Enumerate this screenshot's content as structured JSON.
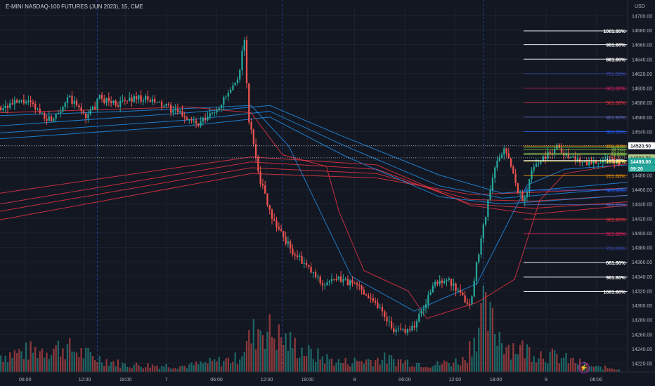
{
  "title": "E-MINI NASDAQ-100 FUTURES (JUN 2023), 15, CME",
  "icons": {
    "lightning": "lightning-icon"
  },
  "chart_data": {
    "type": "candlestick",
    "currency_label": "USD",
    "y_ticks": [
      14220,
      14240,
      14260,
      14280,
      14300,
      14320,
      14340,
      14360,
      14380,
      14400,
      14420,
      14440,
      14460,
      14480,
      14500,
      14520,
      14540,
      14560,
      14580,
      14600,
      14620,
      14640,
      14660,
      14680,
      14700
    ],
    "x_ticks": [
      "06:00",
      "12:00",
      "18:00",
      "7",
      "06:00",
      "12:00",
      "18:00",
      "8",
      "06:00",
      "12:00",
      "18:00",
      "9",
      "06:00"
    ],
    "price_labels": [
      {
        "text": "14520.50",
        "color": "#2a2e39",
        "bg": "#ffffff"
      },
      {
        "text": "14503.75",
        "color": "#2a2e39",
        "bg": "#b2c988"
      },
      {
        "text": "14498.00",
        "color": "#ffffff",
        "bg": "#26a69a"
      },
      {
        "text": "09:20",
        "color": "#ffffff",
        "bg": "#26a69a"
      }
    ],
    "fib_upper": [
      {
        "label": "1061.80%",
        "price": 14679,
        "color": "#ffffff"
      },
      {
        "label": "961.80%",
        "price": 14660,
        "color": "#ffffff"
      },
      {
        "label": "861.80%",
        "price": 14640,
        "color": "#ffffff"
      },
      {
        "label": "761.80%",
        "price": 14620,
        "color": "#3949ab"
      },
      {
        "label": "661.80%",
        "price": 14600,
        "color": "#e91e63"
      },
      {
        "label": "561.80%",
        "price": 14580,
        "color": "#f23645"
      },
      {
        "label": "461.80%",
        "price": 14560,
        "color": "#5c6bc0"
      },
      {
        "label": "361.80%",
        "price": 14540,
        "color": "#2962ff"
      },
      {
        "label": "261.80%",
        "price": 14520,
        "color": "#ff9800"
      },
      {
        "label": "161.80%",
        "price": 14500,
        "color": "#ffffff"
      }
    ],
    "fib_lower": [
      {
        "label": "161.80%",
        "price": 14499,
        "color": "#ffeb3b"
      },
      {
        "label": "261.80%",
        "price": 14479,
        "color": "#ff9800"
      },
      {
        "label": "361.80%",
        "price": 14459,
        "color": "#2962ff"
      },
      {
        "label": "461.80%",
        "price": 14439,
        "color": "#5c6bc0"
      },
      {
        "label": "561.80%",
        "price": 14419,
        "color": "#f23645"
      },
      {
        "label": "661.80%",
        "price": 14399,
        "color": "#e91e63"
      },
      {
        "label": "761.80%",
        "price": 14379,
        "color": "#3949ab"
      },
      {
        "label": "861.80%",
        "price": 14359,
        "color": "#ffffff"
      },
      {
        "label": "961.80%",
        "price": 14339,
        "color": "#ffffff"
      },
      {
        "label": "1061.80%",
        "price": 14319,
        "color": "#ffffff"
      }
    ],
    "reference_lines": [
      {
        "label": "54.80%",
        "price": 14518,
        "color": "#4caf50"
      },
      {
        "label": "38.20%",
        "price": 14515,
        "color": "#8bc34a"
      },
      {
        "label": "23.60%",
        "price": 14510,
        "color": "#8bc34a"
      },
      {
        "label": "0.00%",
        "price": 14508,
        "color": "#8bc34a"
      }
    ],
    "dotted_levels": [
      14520.5,
      14503.75
    ],
    "session_dividers_x": [
      0.155,
      0.45,
      0.77
    ],
    "candle_path": [
      [
        0,
        14574
      ],
      [
        0.04,
        14582
      ],
      [
        0.08,
        14556
      ],
      [
        0.11,
        14586
      ],
      [
        0.14,
        14560
      ],
      [
        0.16,
        14586
      ],
      [
        0.19,
        14578
      ],
      [
        0.22,
        14588
      ],
      [
        0.26,
        14577
      ],
      [
        0.3,
        14560
      ],
      [
        0.32,
        14548
      ],
      [
        0.35,
        14572
      ],
      [
        0.37,
        14594
      ],
      [
        0.385,
        14610
      ],
      [
        0.39,
        14656
      ],
      [
        0.395,
        14664
      ],
      [
        0.4,
        14560
      ],
      [
        0.41,
        14520
      ],
      [
        0.42,
        14472
      ],
      [
        0.44,
        14420
      ],
      [
        0.47,
        14376
      ],
      [
        0.5,
        14348
      ],
      [
        0.52,
        14330
      ],
      [
        0.55,
        14336
      ],
      [
        0.58,
        14326
      ],
      [
        0.61,
        14300
      ],
      [
        0.64,
        14262
      ],
      [
        0.67,
        14272
      ],
      [
        0.7,
        14328
      ],
      [
        0.72,
        14338
      ],
      [
        0.745,
        14312
      ],
      [
        0.76,
        14300
      ],
      [
        0.77,
        14360
      ],
      [
        0.785,
        14430
      ],
      [
        0.8,
        14492
      ],
      [
        0.815,
        14520
      ],
      [
        0.83,
        14476
      ],
      [
        0.845,
        14440
      ],
      [
        0.86,
        14490
      ],
      [
        0.88,
        14506
      ],
      [
        0.9,
        14520
      ],
      [
        0.92,
        14504
      ],
      [
        0.95,
        14498
      ],
      [
        0.98,
        14501
      ],
      [
        1.0,
        14498
      ]
    ],
    "volume_profile": [
      [
        0,
        0.28
      ],
      [
        0.1,
        0.42
      ],
      [
        0.15,
        0.25
      ],
      [
        0.2,
        0.12
      ],
      [
        0.3,
        0.1
      ],
      [
        0.38,
        0.22
      ],
      [
        0.42,
        0.78
      ],
      [
        0.45,
        0.58
      ],
      [
        0.5,
        0.3
      ],
      [
        0.55,
        0.16
      ],
      [
        0.62,
        0.22
      ],
      [
        0.7,
        0.12
      ],
      [
        0.75,
        0.2
      ],
      [
        0.78,
        0.98
      ],
      [
        0.82,
        0.45
      ],
      [
        0.87,
        0.32
      ],
      [
        0.92,
        0.2
      ],
      [
        0.96,
        0.08
      ],
      [
        1.0,
        0.06
      ]
    ],
    "ma_lines": [
      {
        "color": "#f23645",
        "pts": [
          [
            0,
            14455
          ],
          [
            0.4,
            14505
          ],
          [
            0.6,
            14494
          ],
          [
            0.75,
            14438
          ],
          [
            0.85,
            14426
          ],
          [
            1.0,
            14438
          ]
        ]
      },
      {
        "color": "#f23645",
        "pts": [
          [
            0,
            14440
          ],
          [
            0.4,
            14498
          ],
          [
            0.6,
            14488
          ],
          [
            0.75,
            14440
          ],
          [
            0.85,
            14434
          ],
          [
            1.0,
            14443
          ]
        ]
      },
      {
        "color": "#f23645",
        "pts": [
          [
            0,
            14430
          ],
          [
            0.4,
            14490
          ],
          [
            0.6,
            14482
          ],
          [
            0.75,
            14446
          ],
          [
            0.85,
            14444
          ],
          [
            1.0,
            14452
          ]
        ]
      },
      {
        "color": "#f23645",
        "pts": [
          [
            0,
            14418
          ],
          [
            0.4,
            14482
          ],
          [
            0.6,
            14476
          ],
          [
            0.75,
            14453
          ],
          [
            0.85,
            14456
          ],
          [
            1.0,
            14462
          ]
        ]
      },
      {
        "color": "#2196f3",
        "pts": [
          [
            0,
            14530
          ],
          [
            0.3,
            14548
          ],
          [
            0.43,
            14560
          ],
          [
            0.55,
            14506
          ],
          [
            0.7,
            14450
          ],
          [
            0.8,
            14440
          ],
          [
            1.0,
            14452
          ]
        ]
      },
      {
        "color": "#2196f3",
        "pts": [
          [
            0,
            14538
          ],
          [
            0.3,
            14556
          ],
          [
            0.43,
            14568
          ],
          [
            0.55,
            14520
          ],
          [
            0.7,
            14465
          ],
          [
            0.8,
            14448
          ],
          [
            1.0,
            14462
          ]
        ]
      },
      {
        "color": "#2196f3",
        "pts": [
          [
            0,
            14548
          ],
          [
            0.3,
            14566
          ],
          [
            0.43,
            14576
          ],
          [
            0.55,
            14532
          ],
          [
            0.7,
            14480
          ],
          [
            0.8,
            14455
          ],
          [
            1.0,
            14470
          ]
        ]
      },
      {
        "color": "#2196f3",
        "pts": [
          [
            0,
            14562
          ],
          [
            0.2,
            14568
          ],
          [
            0.4,
            14576
          ],
          [
            0.46,
            14520
          ],
          [
            0.56,
            14340
          ],
          [
            0.66,
            14292
          ],
          [
            0.76,
            14330
          ],
          [
            0.84,
            14466
          ],
          [
            0.9,
            14488
          ],
          [
            1.0,
            14494
          ]
        ]
      },
      {
        "color": "#f23645",
        "pts": [
          [
            0,
            14566
          ],
          [
            0.3,
            14574
          ],
          [
            0.4,
            14566
          ],
          [
            0.45,
            14508
          ],
          [
            0.52,
            14492
          ],
          [
            0.54,
            14430
          ],
          [
            0.58,
            14348
          ],
          [
            0.65,
            14320
          ],
          [
            0.68,
            14282
          ],
          [
            0.76,
            14304
          ],
          [
            0.82,
            14336
          ],
          [
            0.86,
            14445
          ],
          [
            0.9,
            14482
          ],
          [
            1.0,
            14496
          ]
        ]
      }
    ]
  }
}
